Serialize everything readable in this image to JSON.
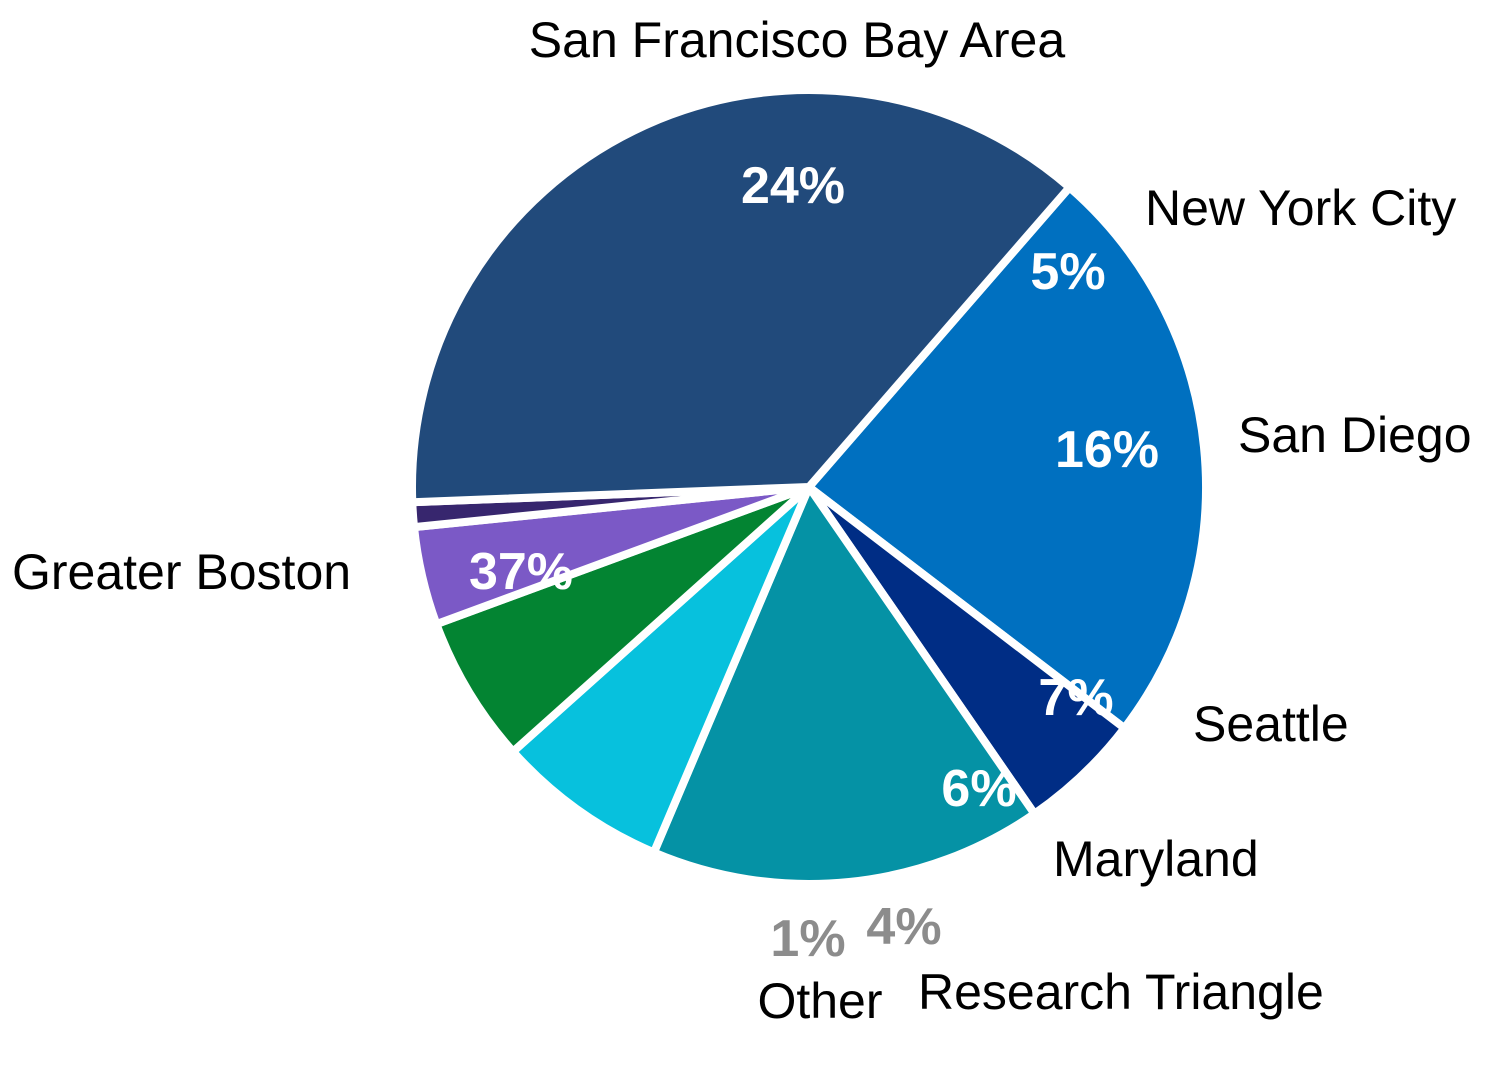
{
  "chart_data": {
    "type": "pie",
    "title": "",
    "slices": [
      {
        "label": "San Francisco Bay Area",
        "value": 24,
        "value_label": "24%",
        "color": "#0070C0",
        "value_label_color": "#FFFFFF"
      },
      {
        "label": "New York City",
        "value": 5,
        "value_label": "5%",
        "color": "#002D85",
        "value_label_color": "#FFFFFF"
      },
      {
        "label": "San Diego",
        "value": 16,
        "value_label": "16%",
        "color": "#0592A5",
        "value_label_color": "#FFFFFF"
      },
      {
        "label": "Seattle",
        "value": 7,
        "value_label": "7%",
        "color": "#07C1DD",
        "value_label_color": "#FFFFFF"
      },
      {
        "label": "Maryland",
        "value": 6,
        "value_label": "6%",
        "color": "#038432",
        "value_label_color": "#FFFFFF"
      },
      {
        "label": "Research Triangle",
        "value": 4,
        "value_label": "4%",
        "color": "#7B59C6",
        "value_label_color": "#8C8C8C"
      },
      {
        "label": "Other",
        "value": 1,
        "value_label": "1%",
        "color": "#37266E",
        "value_label_color": "#8C8C8C"
      },
      {
        "label": "Greater Boston",
        "value": 37,
        "value_label": "37%",
        "color": "#214A7B",
        "value_label_color": "#FFFFFF"
      }
    ]
  }
}
